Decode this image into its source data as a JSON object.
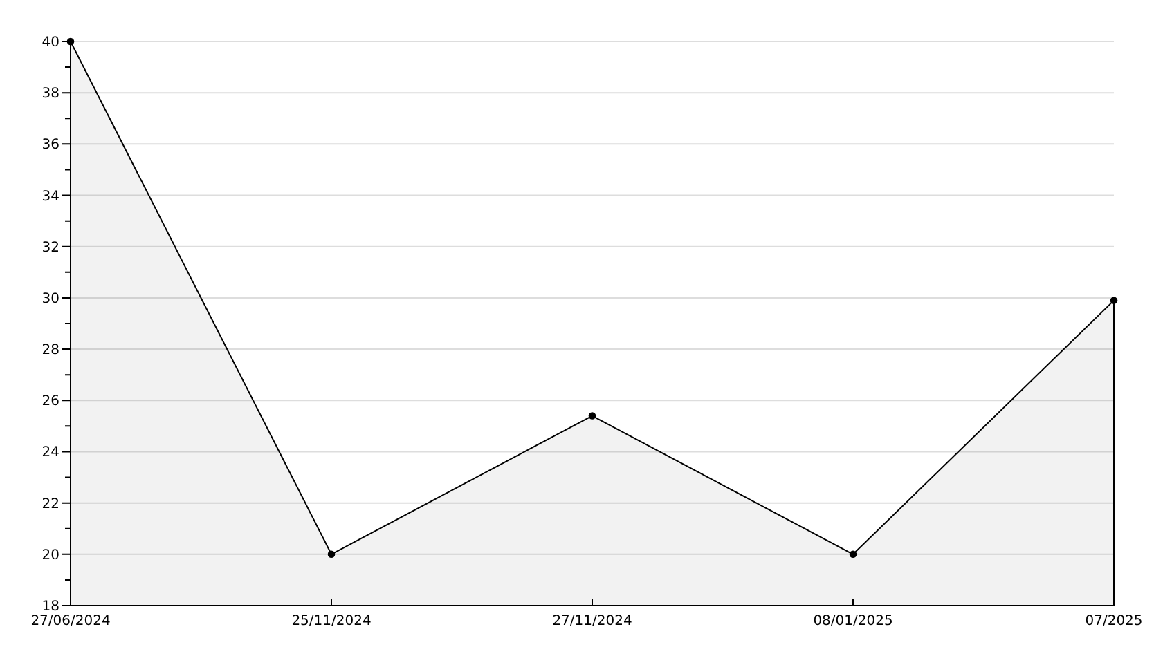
{
  "chart_data": {
    "type": "area",
    "categories": [
      "27/06/2024",
      "25/11/2024",
      "27/11/2024",
      "08/01/2025",
      "07/2025"
    ],
    "series": [
      {
        "color": "#000000",
        "values": [
          40,
          20,
          25.4,
          20,
          29.9
        ]
      }
    ],
    "ylim": [
      18,
      40
    ],
    "yticks": [
      18,
      {
        "value": 19,
        "label": null
      },
      20,
      {
        "value": 21,
        "label": null
      },
      22,
      {
        "value": 23,
        "label": null
      },
      24,
      {
        "value": 25,
        "label": null
      },
      26,
      {
        "value": 27,
        "label": null
      },
      28,
      {
        "value": 29,
        "label": null
      },
      30,
      {
        "value": 31,
        "label": null
      },
      32,
      {
        "value": 33,
        "label": null
      },
      34,
      {
        "value": 35,
        "label": null
      },
      36,
      {
        "value": 37,
        "label": null
      },
      38,
      {
        "value": 39,
        "label": null
      },
      40
    ],
    "grid": "y",
    "marker": "circle",
    "line_style": "solid"
  }
}
